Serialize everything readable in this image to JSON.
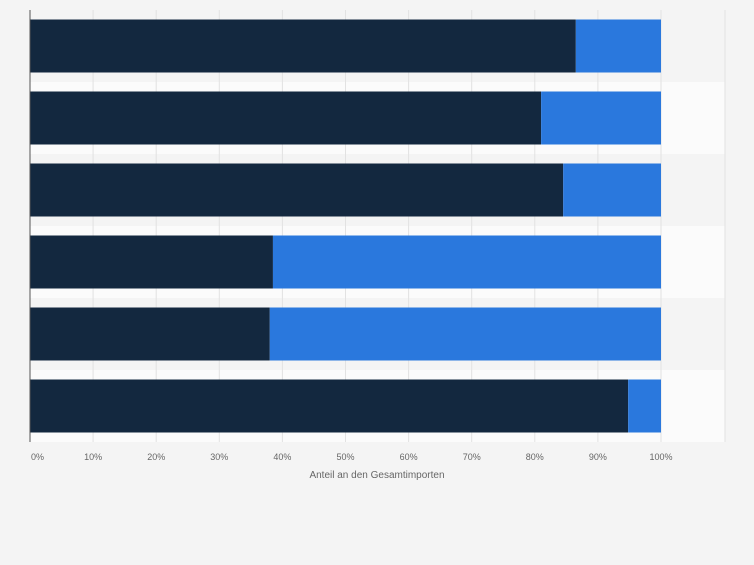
{
  "chart_data": {
    "type": "bar",
    "orientation": "horizontal",
    "stacked": true,
    "xlabel": "Anteil an den Gesamtimporten",
    "x_ticks": [
      "0%",
      "10%",
      "20%",
      "30%",
      "40%",
      "50%",
      "60%",
      "70%",
      "80%",
      "90%",
      "100%"
    ],
    "xlim": [
      0,
      100
    ],
    "grid": true,
    "legend": "none",
    "categories": [
      "",
      "",
      "",
      "",
      "",
      ""
    ],
    "series": [
      {
        "color": "#13283f",
        "values": [
          86.5,
          81,
          84.5,
          38.5,
          38,
          94.8
        ]
      },
      {
        "color": "#2a78dd",
        "values": [
          13.5,
          19,
          15.5,
          61.5,
          62,
          5.2
        ]
      }
    ]
  }
}
